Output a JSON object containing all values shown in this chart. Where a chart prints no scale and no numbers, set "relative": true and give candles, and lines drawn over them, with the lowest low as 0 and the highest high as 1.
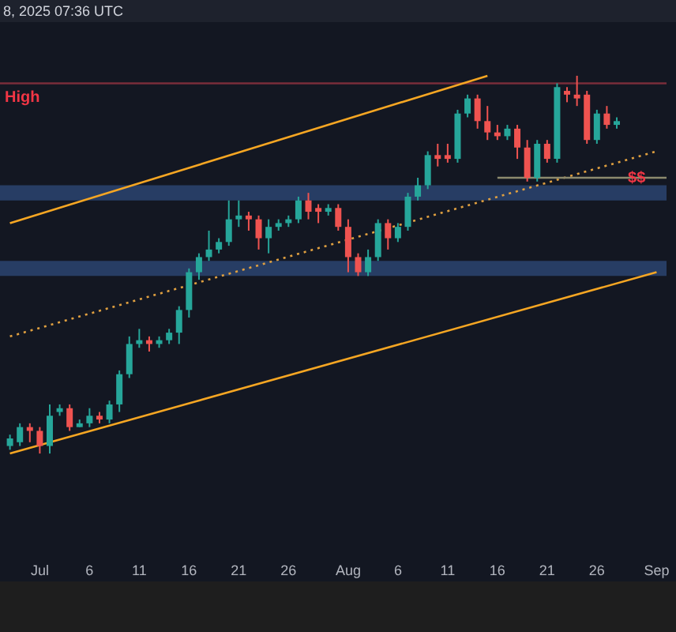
{
  "chart_data": {
    "type": "candlestick",
    "relative": true,
    "annotations": [
      "8, 2025 07:36 UTC",
      {
        "text": "$$",
        "x": "2025-08-30",
        "y": 0.73
      }
    ],
    "x": [
      "2025-06-28",
      "2025-06-29",
      "2025-06-30",
      "2025-07-01",
      "2025-07-02",
      "2025-07-03",
      "2025-07-04",
      "2025-07-05",
      "2025-07-06",
      "2025-07-07",
      "2025-07-08",
      "2025-07-09",
      "2025-07-10",
      "2025-07-11",
      "2025-07-12",
      "2025-07-13",
      "2025-07-14",
      "2025-07-15",
      "2025-07-16",
      "2025-07-17",
      "2025-07-18",
      "2025-07-19",
      "2025-07-20",
      "2025-07-21",
      "2025-07-22",
      "2025-07-23",
      "2025-07-24",
      "2025-07-25",
      "2025-07-26",
      "2025-07-27",
      "2025-07-28",
      "2025-07-29",
      "2025-07-30",
      "2025-07-31",
      "2025-08-01",
      "2025-08-02",
      "2025-08-03",
      "2025-08-04",
      "2025-08-05",
      "2025-08-06",
      "2025-08-07",
      "2025-08-08",
      "2025-08-09",
      "2025-08-10",
      "2025-08-11",
      "2025-08-12",
      "2025-08-13",
      "2025-08-14",
      "2025-08-15",
      "2025-08-16",
      "2025-08-17",
      "2025-08-18",
      "2025-08-19",
      "2025-08-20",
      "2025-08-21",
      "2025-08-22",
      "2025-08-23",
      "2025-08-24",
      "2025-08-25",
      "2025-08-26",
      "2025-08-27",
      "2025-08-28"
    ],
    "ohlc": [
      [
        0.02,
        0.05,
        0.01,
        0.04
      ],
      [
        0.03,
        0.08,
        0.02,
        0.07
      ],
      [
        0.07,
        0.08,
        0.03,
        0.06
      ],
      [
        0.06,
        0.07,
        0.0,
        0.02
      ],
      [
        0.02,
        0.13,
        0.0,
        0.1
      ],
      [
        0.11,
        0.13,
        0.1,
        0.12
      ],
      [
        0.12,
        0.13,
        0.06,
        0.07
      ],
      [
        0.07,
        0.09,
        0.07,
        0.08
      ],
      [
        0.08,
        0.12,
        0.07,
        0.1
      ],
      [
        0.1,
        0.11,
        0.08,
        0.09
      ],
      [
        0.09,
        0.14,
        0.08,
        0.13
      ],
      [
        0.13,
        0.22,
        0.11,
        0.21
      ],
      [
        0.21,
        0.31,
        0.2,
        0.29
      ],
      [
        0.29,
        0.33,
        0.28,
        0.3
      ],
      [
        0.3,
        0.31,
        0.27,
        0.29
      ],
      [
        0.29,
        0.31,
        0.28,
        0.3
      ],
      [
        0.3,
        0.33,
        0.29,
        0.32
      ],
      [
        0.32,
        0.39,
        0.29,
        0.38
      ],
      [
        0.38,
        0.49,
        0.36,
        0.48
      ],
      [
        0.48,
        0.53,
        0.46,
        0.52
      ],
      [
        0.52,
        0.59,
        0.51,
        0.54
      ],
      [
        0.54,
        0.57,
        0.53,
        0.56
      ],
      [
        0.56,
        0.67,
        0.55,
        0.62
      ],
      [
        0.62,
        0.67,
        0.6,
        0.63
      ],
      [
        0.63,
        0.64,
        0.59,
        0.62
      ],
      [
        0.62,
        0.63,
        0.54,
        0.57
      ],
      [
        0.57,
        0.62,
        0.53,
        0.6
      ],
      [
        0.6,
        0.62,
        0.59,
        0.61
      ],
      [
        0.61,
        0.63,
        0.6,
        0.62
      ],
      [
        0.62,
        0.68,
        0.61,
        0.67
      ],
      [
        0.67,
        0.69,
        0.62,
        0.64
      ],
      [
        0.65,
        0.66,
        0.61,
        0.64
      ],
      [
        0.64,
        0.66,
        0.63,
        0.65
      ],
      [
        0.65,
        0.66,
        0.59,
        0.6
      ],
      [
        0.6,
        0.62,
        0.48,
        0.52
      ],
      [
        0.52,
        0.53,
        0.47,
        0.48
      ],
      [
        0.48,
        0.54,
        0.47,
        0.52
      ],
      [
        0.52,
        0.62,
        0.51,
        0.61
      ],
      [
        0.61,
        0.62,
        0.54,
        0.57
      ],
      [
        0.57,
        0.61,
        0.56,
        0.6
      ],
      [
        0.6,
        0.69,
        0.59,
        0.68
      ],
      [
        0.68,
        0.73,
        0.67,
        0.71
      ],
      [
        0.71,
        0.8,
        0.7,
        0.79
      ],
      [
        0.79,
        0.82,
        0.76,
        0.78
      ],
      [
        0.79,
        0.82,
        0.77,
        0.78
      ],
      [
        0.78,
        0.91,
        0.77,
        0.9
      ],
      [
        0.9,
        0.95,
        0.89,
        0.94
      ],
      [
        0.94,
        0.95,
        0.86,
        0.88
      ],
      [
        0.88,
        0.92,
        0.83,
        0.85
      ],
      [
        0.85,
        0.87,
        0.83,
        0.84
      ],
      [
        0.84,
        0.87,
        0.83,
        0.86
      ],
      [
        0.86,
        0.87,
        0.78,
        0.81
      ],
      [
        0.81,
        0.83,
        0.72,
        0.73
      ],
      [
        0.73,
        0.83,
        0.72,
        0.82
      ],
      [
        0.82,
        0.83,
        0.77,
        0.78
      ],
      [
        0.78,
        0.98,
        0.77,
        0.97
      ],
      [
        0.96,
        0.97,
        0.93,
        0.95
      ],
      [
        0.95,
        1.0,
        0.92,
        0.94
      ],
      [
        0.95,
        0.96,
        0.82,
        0.83
      ],
      [
        0.83,
        0.91,
        0.82,
        0.9
      ],
      [
        0.9,
        0.92,
        0.86,
        0.87
      ],
      [
        0.87,
        0.89,
        0.86,
        0.88
      ]
    ],
    "colors": [
      "#26a69a",
      "#26a69a",
      "#ef5350",
      "#ef5350",
      "#26a69a",
      "#26a69a",
      "#ef5350",
      "#26a69a",
      "#26a69a",
      "#ef5350",
      "#26a69a",
      "#26a69a",
      "#26a69a",
      "#26a69a",
      "#ef5350",
      "#26a69a",
      "#26a69a",
      "#26a69a",
      "#26a69a",
      "#26a69a",
      "#26a69a",
      "#26a69a",
      "#26a69a",
      "#26a69a",
      "#ef5350",
      "#ef5350",
      "#26a69a",
      "#26a69a",
      "#26a69a",
      "#26a69a",
      "#ef5350",
      "#ef5350",
      "#26a69a",
      "#ef5350",
      "#ef5350",
      "#ef5350",
      "#26a69a",
      "#26a69a",
      "#ef5350",
      "#26a69a",
      "#26a69a",
      "#26a69a",
      "#26a69a",
      "#ef5350",
      "#ef5350",
      "#26a69a",
      "#26a69a",
      "#ef5350",
      "#ef5350",
      "#ef5350",
      "#26a69a",
      "#ef5350",
      "#ef5350",
      "#26a69a",
      "#ef5350",
      "#26a69a",
      "#ef5350",
      "#ef5350",
      "#ef5350",
      "#26a69a",
      "#ef5350",
      "#26a69a"
    ],
    "series": [
      {
        "type": "line",
        "x": [
          "2025-06-28",
          "2025-08-15"
        ],
        "values": [
          0.61,
          1.0
        ],
        "color": "#f5a623",
        "line_style": "solid"
      },
      {
        "type": "line",
        "x": [
          "2025-06-28",
          "2025-09-01"
        ],
        "values": [
          0.0,
          0.48
        ],
        "color": "#f5a623",
        "line_style": "solid"
      },
      {
        "type": "line",
        "x": [
          "2025-06-28",
          "2025-09-01"
        ],
        "values": [
          0.31,
          0.8
        ],
        "color": "#e0a040",
        "line_style": "dotted"
      },
      {
        "type": "line",
        "x": [
          "2025-08-16",
          "2025-09-02"
        ],
        "values": [
          0.73,
          0.73
        ],
        "color": "#8c8a6e",
        "line_style": "solid"
      }
    ],
    "ref_lines": [
      {
        "axis": "y",
        "value": 0.98,
        "label": "High",
        "color": "#7a2e3a"
      }
    ],
    "bands": [
      {
        "axis": "y",
        "from": 0.67,
        "to": 0.71,
        "color": "#2b4470"
      },
      {
        "axis": "y",
        "from": 0.47,
        "to": 0.51,
        "color": "#2b4470"
      }
    ],
    "xlim": [
      "2025-06-27",
      "2025-09-02"
    ],
    "xticks": [
      {
        "value": "2025-07-01",
        "label": "Jul"
      },
      {
        "value": "2025-07-06",
        "label": "6"
      },
      {
        "value": "2025-07-11",
        "label": "11"
      },
      {
        "value": "2025-07-16",
        "label": "16"
      },
      {
        "value": "2025-07-21",
        "label": "21"
      },
      {
        "value": "2025-07-26",
        "label": "26"
      },
      {
        "value": "2025-08-01",
        "label": "Aug"
      },
      {
        "value": "2025-08-06",
        "label": "6"
      },
      {
        "value": "2025-08-11",
        "label": "11"
      },
      {
        "value": "2025-08-16",
        "label": "16"
      },
      {
        "value": "2025-08-21",
        "label": "21"
      },
      {
        "value": "2025-08-26",
        "label": "26"
      },
      {
        "value": "2025-09-01",
        "label": "Sep"
      }
    ]
  }
}
